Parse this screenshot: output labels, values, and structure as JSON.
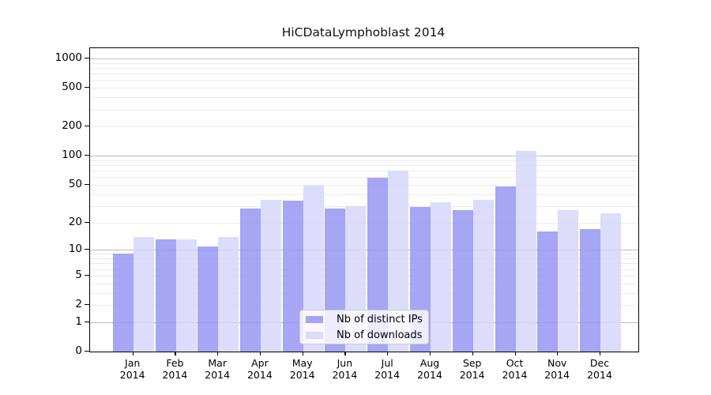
{
  "window": {
    "background": "#ffffff"
  },
  "chart_data": {
    "type": "bar",
    "title": "HiCDataLymphoblast 2014",
    "categories": [
      "Jan",
      "Feb",
      "Mar",
      "Apr",
      "May",
      "Jun",
      "Jul",
      "Aug",
      "Sep",
      "Oct",
      "Nov",
      "Dec"
    ],
    "category_year": "2014",
    "series": [
      {
        "name": "Nb of distinct IPs",
        "fill": "rgba(150,150,242,0.85)",
        "values": [
          9,
          13,
          11,
          28,
          34,
          28,
          59,
          29,
          27,
          48,
          16,
          17
        ]
      },
      {
        "name": "Nb of downloads",
        "fill": "rgba(214,214,250,0.85)",
        "values": [
          14,
          13,
          14,
          35,
          49,
          30,
          70,
          33,
          35,
          113,
          27,
          25
        ]
      }
    ],
    "xlabel": "",
    "ylabel": "",
    "scale": "log1p",
    "ylim": [
      0,
      1280
    ],
    "y_ticks": [
      0,
      1,
      2,
      5,
      10,
      20,
      50,
      100,
      200,
      500,
      1000
    ],
    "grid": {
      "enabled": true,
      "major_at": [
        1,
        10,
        100,
        1000
      ],
      "minor_multiples": [
        2,
        3,
        4,
        5,
        6,
        7,
        8,
        9
      ],
      "major_color": "#bdbdbd",
      "minor_color": "#ececec"
    },
    "legend_position": "bottom-center",
    "axis_color": "#000000"
  }
}
